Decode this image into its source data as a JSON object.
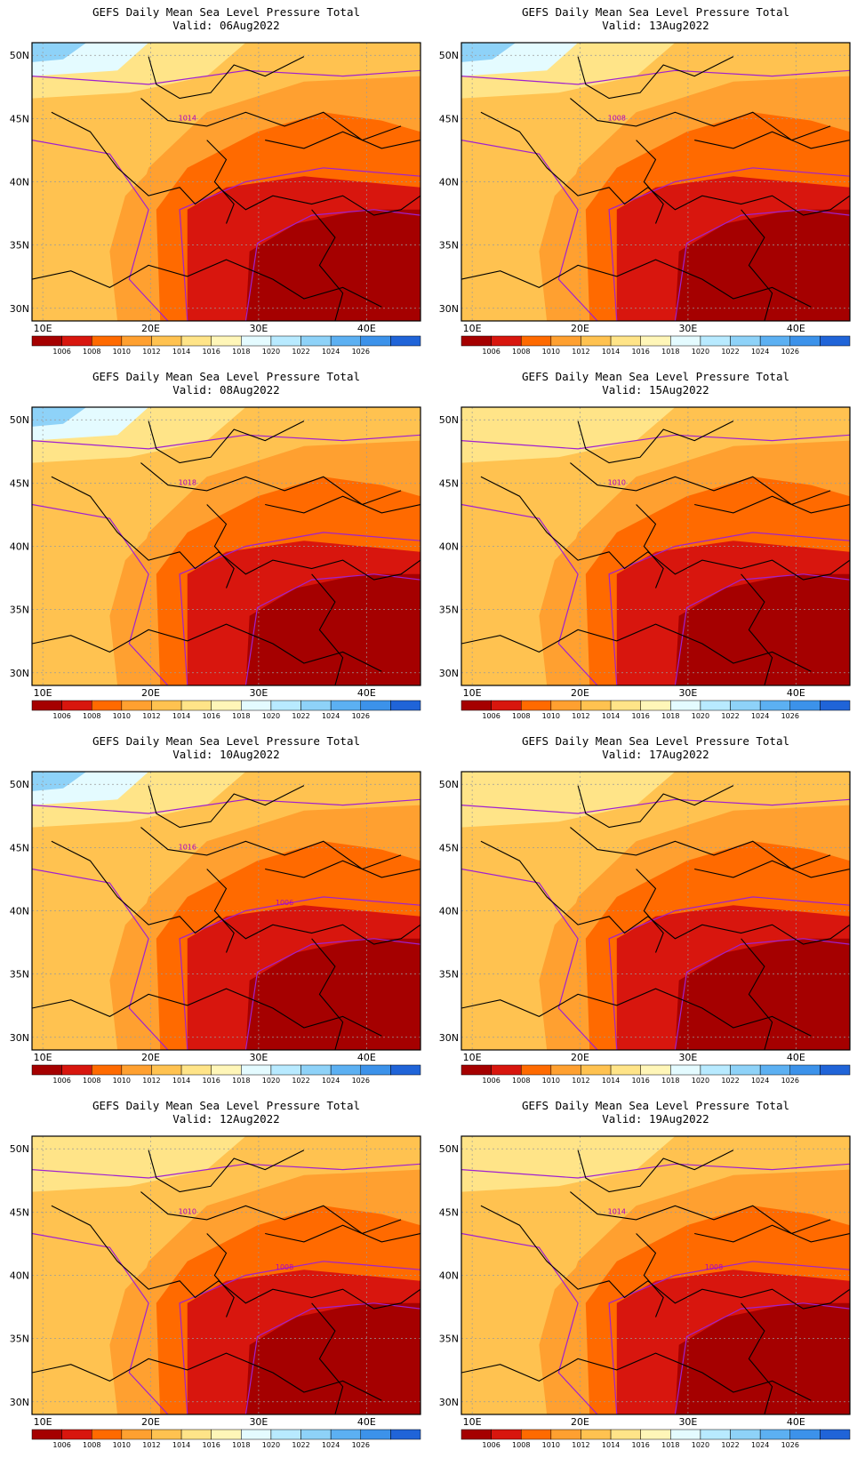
{
  "chart_data": {
    "type": "map-panels",
    "variable_title": "GEFS Daily Mean Sea Level Pressure Total",
    "region": {
      "lon_range": [
        9,
        45
      ],
      "lat_range": [
        29,
        51
      ]
    },
    "x_ticks": [
      "10E",
      "20E",
      "30E",
      "40E"
    ],
    "y_ticks": [
      "50N",
      "45N",
      "40N",
      "35N",
      "30N"
    ],
    "contour_interval_hpa": 2,
    "colorbar": {
      "labels": [
        "1006",
        "1008",
        "1010",
        "1012",
        "1014",
        "1016",
        "1018",
        "1020",
        "1022",
        "1024",
        "1026"
      ],
      "colors": [
        "#a50000",
        "#d8160e",
        "#ff6a00",
        "#ffa030",
        "#ffc250",
        "#ffe488",
        "#fff6b8",
        "#e4fbff",
        "#b8eaff",
        "#8ed2f8",
        "#5cb0f2",
        "#3c92ea",
        "#2064d8"
      ]
    },
    "panels": [
      {
        "valid_label": "Valid: 06Aug2022",
        "contour_labels": [
          "1014"
        ]
      },
      {
        "valid_label": "Valid: 13Aug2022",
        "contour_labels": [
          "1008"
        ]
      },
      {
        "valid_label": "Valid: 08Aug2022",
        "contour_labels": [
          "1018"
        ]
      },
      {
        "valid_label": "Valid: 15Aug2022",
        "contour_labels": [
          "1010"
        ]
      },
      {
        "valid_label": "Valid: 10Aug2022",
        "contour_labels": [
          "1016",
          "1006"
        ]
      },
      {
        "valid_label": "Valid: 17Aug2022",
        "contour_labels": []
      },
      {
        "valid_label": "Valid: 12Aug2022",
        "contour_labels": [
          "1010",
          "1008"
        ]
      },
      {
        "valid_label": "Valid: 19Aug2022",
        "contour_labels": [
          "1014",
          "1008"
        ]
      }
    ]
  }
}
